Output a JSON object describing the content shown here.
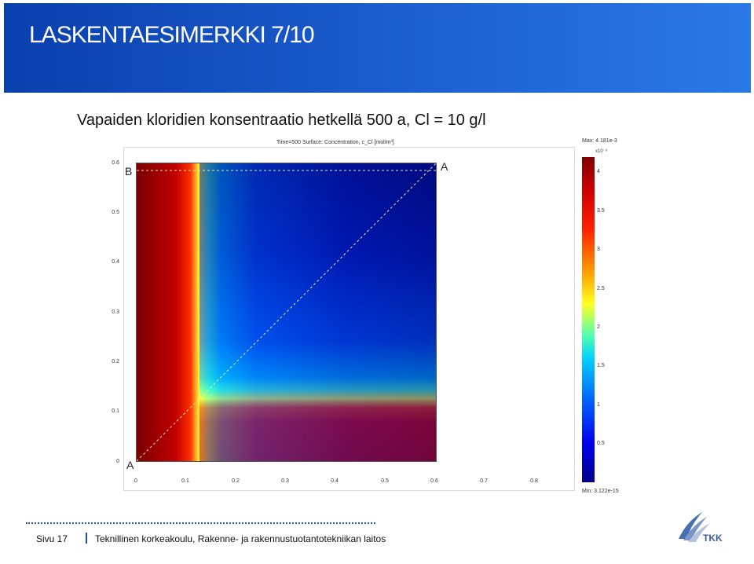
{
  "header": {
    "title": "LASKENTAESIMERKKI 7/10",
    "background": "#1c5fd0"
  },
  "slide": {
    "subtitle": "Vapaiden kloridien konsentraatio hetkellä 500 a, Cl = 10 g/l"
  },
  "plot": {
    "title": "Time=500   Surface: Concentration, c_Cl [mol/m³]",
    "y_ticks": [
      "0.6",
      "0.5",
      "0.4",
      "0.3",
      "0.2",
      "0.1",
      "0"
    ],
    "x_ticks": [
      "0",
      "0.1",
      "0.2",
      "0.3",
      "0.4",
      "0.5",
      "0.6",
      "0.7",
      "0.8"
    ],
    "points": {
      "a_top": "A",
      "b": "B",
      "a_bottom": "A"
    },
    "colorbar": {
      "max": "Max: 4.181e-3",
      "exponent": "x10⁻³",
      "ticks": [
        "4",
        "3.5",
        "3",
        "2.5",
        "2",
        "1.5",
        "1",
        "0.5"
      ],
      "min": "Min: 3.122e-15"
    }
  },
  "footer": {
    "page": "Sivu 17",
    "organization": "Teknillinen korkeakoulu, Rakenne- ja rakennustuotantotekniikan laitos",
    "logo_text": "TKK",
    "accent": "#1c4fa8"
  }
}
